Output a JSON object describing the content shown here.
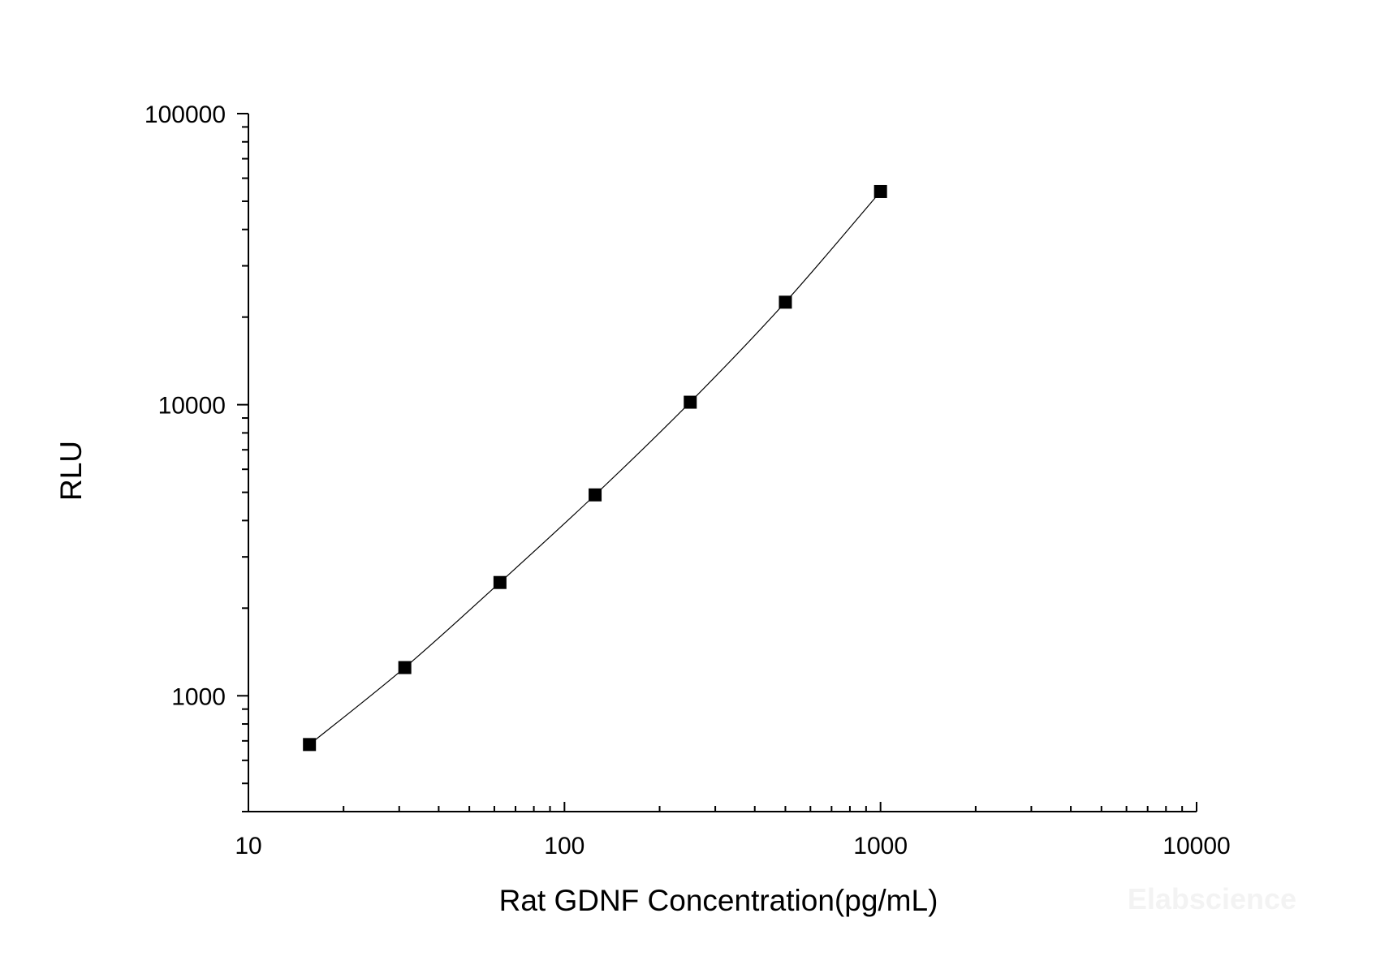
{
  "chart_data": {
    "type": "scatter",
    "xlabel": "Rat GDNF Concentration(pg/mL)",
    "ylabel": "RLU",
    "xscale": "log",
    "yscale": "log",
    "xlim": [
      10,
      10000
    ],
    "ylim": [
      400,
      100000
    ],
    "xticks": [
      10,
      100,
      1000,
      10000
    ],
    "xtick_labels": [
      "10",
      "100",
      "1000",
      "10000"
    ],
    "yticks": [
      1000,
      10000,
      100000
    ],
    "ytick_labels": [
      "1000",
      "10000",
      "100000"
    ],
    "grid": false,
    "legend": false,
    "series": [
      {
        "x": [
          15.6,
          31.25,
          62.5,
          125,
          250,
          500,
          1000
        ],
        "y": [
          680,
          1250,
          2450,
          4900,
          10200,
          22500,
          54000
        ],
        "marker": "square",
        "color": "#000000",
        "line": "smooth-fit"
      }
    ]
  },
  "watermark": "Elabscience"
}
